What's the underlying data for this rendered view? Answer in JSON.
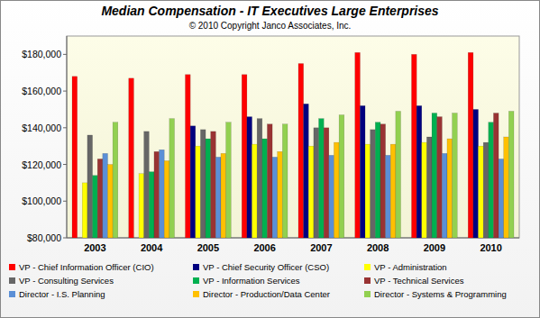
{
  "chart_data": {
    "type": "bar",
    "title": "Median Compensation - IT Executives Large Enterprises",
    "subtitle": "© 2010 Copyright Janco Associates, Inc.",
    "categories": [
      "2003",
      "2004",
      "2005",
      "2006",
      "2007",
      "2008",
      "2009",
      "2010"
    ],
    "series": [
      {
        "name": "VP - Chief Information Officer (CIO)",
        "color": "#ff0000",
        "values": [
          168000,
          167000,
          169000,
          169000,
          175000,
          181000,
          180000,
          181000
        ]
      },
      {
        "name": "VP - Chief Security Officer (CSO)",
        "color": "#000080",
        "values": [
          null,
          null,
          141000,
          146000,
          153000,
          152000,
          152000,
          150000
        ]
      },
      {
        "name": "VP - Administration",
        "color": "#ffff00",
        "values": [
          110000,
          115000,
          130000,
          131000,
          130000,
          131000,
          132000,
          130000
        ]
      },
      {
        "name": "VP - Consulting Services",
        "color": "#666666",
        "values": [
          136000,
          138000,
          139000,
          145000,
          140000,
          139000,
          135000,
          132000
        ]
      },
      {
        "name": "VP - Information Services",
        "color": "#00b050",
        "values": [
          114000,
          116000,
          134000,
          134000,
          145000,
          143000,
          148000,
          143000
        ]
      },
      {
        "name": "VP - Technical Services",
        "color": "#993333",
        "values": [
          123000,
          127000,
          138000,
          142000,
          140000,
          142000,
          146000,
          148000
        ]
      },
      {
        "name": "Director - I.S. Planning",
        "color": "#5b8fd6",
        "values": [
          126000,
          128000,
          124000,
          124000,
          125000,
          125000,
          126000,
          123000
        ]
      },
      {
        "name": "Director - Production/Data Center",
        "color": "#ffc000",
        "values": [
          120000,
          122000,
          126000,
          127000,
          132000,
          131000,
          134000,
          135000
        ]
      },
      {
        "name": "Director - Systems & Programming",
        "color": "#92d050",
        "values": [
          143000,
          145000,
          143000,
          142000,
          147000,
          149000,
          148000,
          149000
        ]
      }
    ],
    "ylim": [
      80000,
      190000
    ],
    "yticks": [
      {
        "value": 80000,
        "label": "$80,000"
      },
      {
        "value": 100000,
        "label": "$100,000"
      },
      {
        "value": 120000,
        "label": "$120,000"
      },
      {
        "value": 140000,
        "label": "$140,000"
      },
      {
        "value": 160000,
        "label": "$160,000"
      },
      {
        "value": 180000,
        "label": "$180,000"
      }
    ],
    "grid": false,
    "legend": "bottom"
  }
}
